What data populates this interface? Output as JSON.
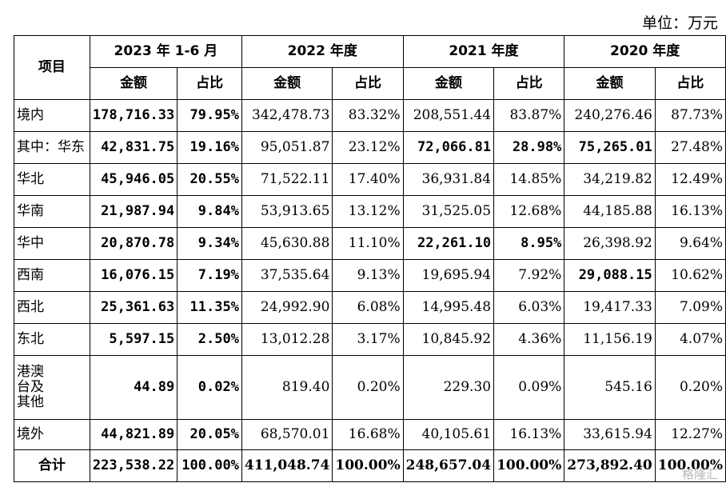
{
  "unit_label": "单位：万元",
  "header": {
    "item": "项目",
    "periods": [
      "2023 年 1-6 月",
      "2022 年度",
      "2021 年度",
      "2020 年度"
    ],
    "amount": "金额",
    "ratio": "占比"
  },
  "rows": [
    {
      "label": "境内",
      "cells": [
        "178,716.33",
        "79.95%",
        "342,478.73",
        "83.32%",
        "208,551.44",
        "83.87%",
        "240,276.46",
        "87.73%"
      ]
    },
    {
      "label": "其中：华东",
      "cells": [
        "42,831.75",
        "19.16%",
        "95,051.87",
        "23.12%",
        "72,066.81",
        "28.98%",
        "75,265.01",
        "27.48%"
      ]
    },
    {
      "label": "华北",
      "cells": [
        "45,946.05",
        "20.55%",
        "71,522.11",
        "17.40%",
        "36,931.84",
        "14.85%",
        "34,219.82",
        "12.49%"
      ]
    },
    {
      "label": "华南",
      "cells": [
        "21,987.94",
        "9.84%",
        "53,913.65",
        "13.12%",
        "31,525.05",
        "12.68%",
        "44,185.88",
        "16.13%"
      ]
    },
    {
      "label": "华中",
      "cells": [
        "20,870.78",
        "9.34%",
        "45,630.88",
        "11.10%",
        "22,261.10",
        "8.95%",
        "26,398.92",
        "9.64%"
      ]
    },
    {
      "label": "西南",
      "cells": [
        "16,076.15",
        "7.19%",
        "37,535.64",
        "9.13%",
        "19,695.94",
        "7.92%",
        "29,088.15",
        "10.62%"
      ]
    },
    {
      "label": "西北",
      "cells": [
        "25,361.63",
        "11.35%",
        "24,992.90",
        "6.08%",
        "14,995.48",
        "6.03%",
        "19,417.33",
        "7.09%"
      ]
    },
    {
      "label": "东北",
      "cells": [
        "5,597.15",
        "2.50%",
        "13,012.28",
        "3.17%",
        "10,845.92",
        "4.36%",
        "11,156.19",
        "4.07%"
      ]
    },
    {
      "label_lines": [
        "港澳",
        "台及",
        "其他"
      ],
      "cells": [
        "44.89",
        "0.02%",
        "819.40",
        "0.20%",
        "229.30",
        "0.09%",
        "545.16",
        "0.20%"
      ]
    },
    {
      "label": "境外",
      "cells": [
        "44,821.89",
        "20.05%",
        "68,570.01",
        "16.68%",
        "40,105.61",
        "16.13%",
        "33,615.94",
        "12.27%"
      ]
    },
    {
      "label": "合计",
      "cells": [
        "223,538.22",
        "100.00%",
        "411,048.74",
        "100.00%",
        "248,657.04",
        "100.00%",
        "273,892.40",
        "100.00%"
      ]
    }
  ],
  "watermark": "格隆汇"
}
